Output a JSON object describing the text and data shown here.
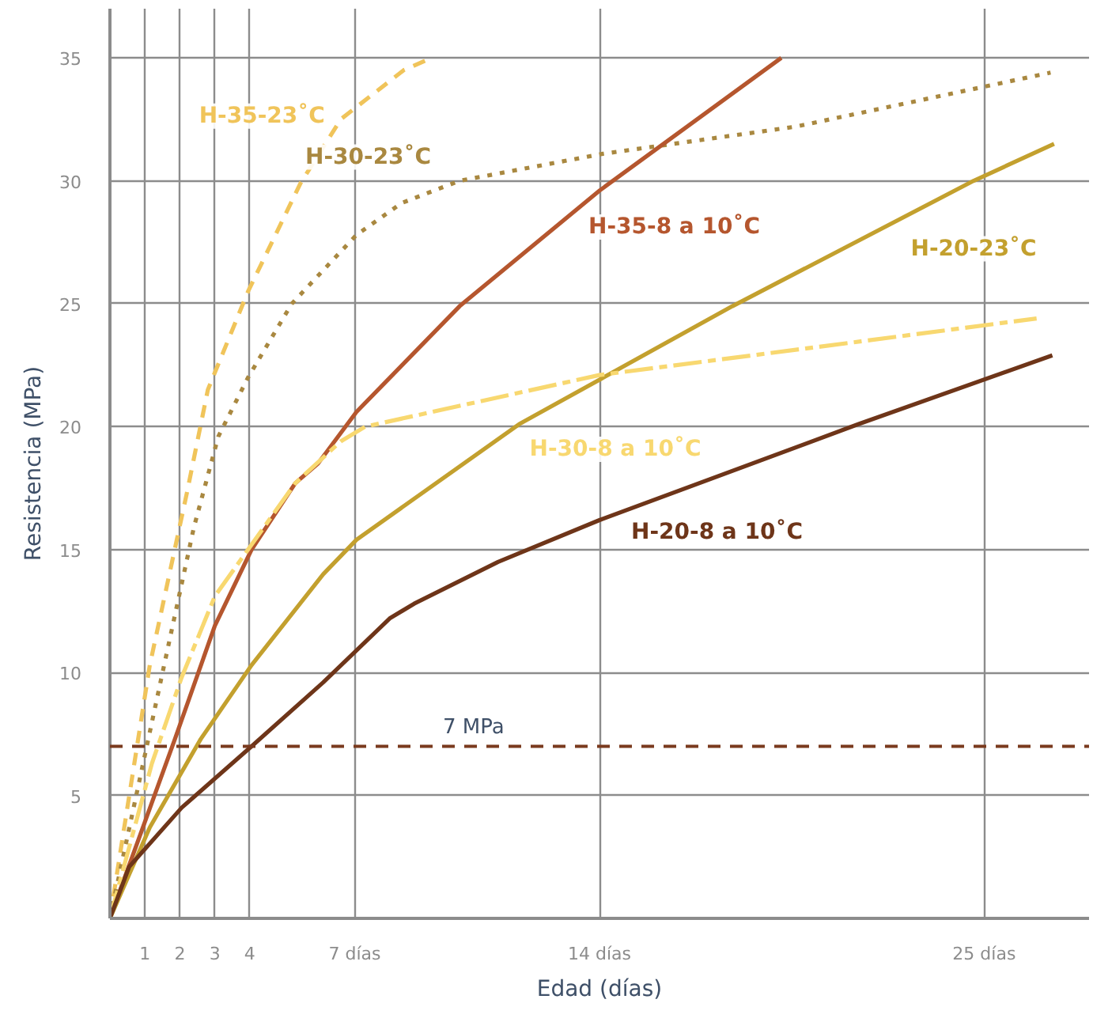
{
  "chart_data": {
    "type": "line",
    "xlabel": "Edad (días)",
    "ylabel": "Resistencia (MPa)",
    "xlim": [
      0,
      28
    ],
    "ylim": [
      0,
      37
    ],
    "xticks": [
      1,
      2,
      3,
      4,
      {
        "value": 7,
        "label": "7 días"
      },
      {
        "value": 14,
        "label": "14 días"
      },
      {
        "value": 25,
        "label": "25 días"
      }
    ],
    "yticks": [
      {
        "value": 0,
        "label": null
      },
      5,
      10,
      15,
      20,
      25,
      30,
      35
    ],
    "grid": true,
    "marker": "none",
    "ref_lines": [
      {
        "axis": "y",
        "value": 7,
        "label": "7 MPa",
        "color": "#7a3a1e",
        "line_style": "dashed"
      }
    ],
    "series": [
      {
        "name": "H-35-23˚C",
        "color": "#f0c45a",
        "line_style": "dashed",
        "x": [
          0,
          1.14,
          2.2,
          2.8,
          3.95,
          5.45,
          6.6,
          8.4,
          9.2
        ],
        "values": [
          0,
          10.3,
          17.3,
          21.5,
          25.5,
          29.9,
          32.5,
          34.5,
          35
        ]
      },
      {
        "name": "H-30-23˚C",
        "color": "#a98840",
        "line_style": "dotted",
        "x": [
          0,
          1.55,
          2.4,
          3.1,
          3.95,
          5.2,
          7.05,
          8.35,
          10,
          14.1,
          19.6,
          26.9
        ],
        "values": [
          0,
          10.3,
          15.9,
          19.6,
          22,
          25,
          27.8,
          29.1,
          30,
          31.1,
          32.2,
          34.4
        ]
      },
      {
        "name": "H-35-8 a 10˚C",
        "color": "#b5562e",
        "line_style": "solid",
        "x": [
          0,
          1.86,
          3,
          4.05,
          5.3,
          5.95,
          7.05,
          10,
          14,
          19.2
        ],
        "values": [
          0,
          7.3,
          11.9,
          15,
          17.7,
          18.5,
          20.6,
          24.9,
          29.6,
          35
        ]
      },
      {
        "name": "H-20-23˚C",
        "color": "#c3a02e",
        "line_style": "solid",
        "x": [
          0,
          1.14,
          2.6,
          4.05,
          6.1,
          7.05,
          11.7,
          17.8,
          24.7,
          27
        ],
        "values": [
          0,
          3.7,
          7.3,
          10.3,
          14,
          15.4,
          20.1,
          24.9,
          30,
          31.5
        ]
      },
      {
        "name": "H-30-8 a 10˚C",
        "color": "#f8d870",
        "line_style": "dashdot",
        "x": [
          0,
          1.2,
          2.05,
          3,
          3.95,
          5.3,
          6.6,
          7.3,
          14,
          21.1,
          26.5
        ],
        "values": [
          0,
          6.3,
          9.8,
          13.1,
          15,
          17.7,
          19.4,
          20,
          22.1,
          23.4,
          24.4
        ]
      },
      {
        "name": "H-20-8 a 10˚C",
        "color": "#6e3519",
        "line_style": "solid",
        "x": [
          0,
          0.55,
          2.05,
          4.05,
          6.1,
          8,
          8.7,
          11.1,
          14,
          21.4,
          26.95
        ],
        "values": [
          0,
          2.1,
          4.5,
          7,
          9.6,
          12.2,
          12.8,
          14.5,
          16.2,
          20.1,
          22.9
        ]
      }
    ]
  }
}
